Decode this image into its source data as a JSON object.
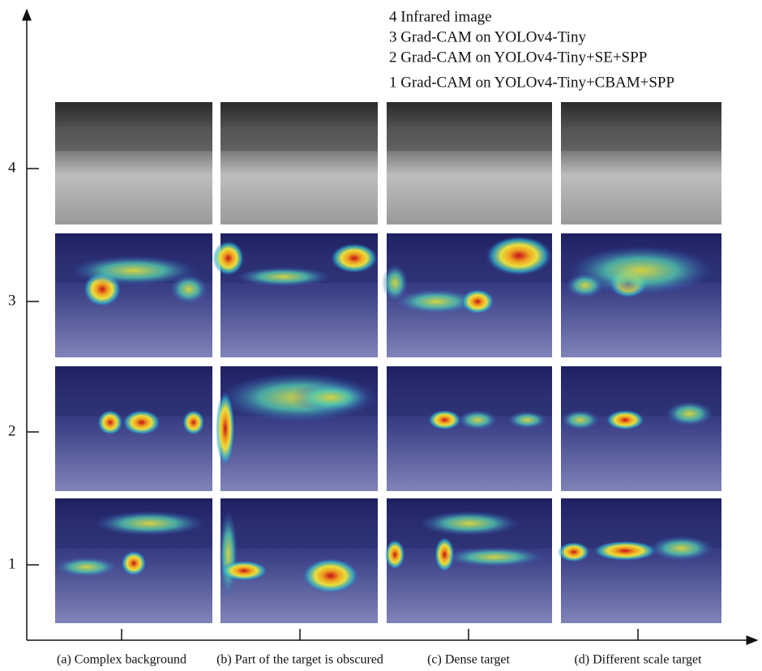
{
  "legend": [
    "4 Infrared image",
    "3 Grad-CAM on YOLOv4-Tiny",
    "2 Grad-CAM on YOLOv4-Tiny+SE+SPP",
    "1 Grad-CAM on YOLOv4-Tiny+CBAM+SPP"
  ],
  "row_labels": [
    "4",
    "3",
    "2",
    "1"
  ],
  "column_labels": [
    "(a) Complex background",
    "(b) Part of the target is obscured",
    "(c) Dense target",
    "(d) Different scale target"
  ]
}
